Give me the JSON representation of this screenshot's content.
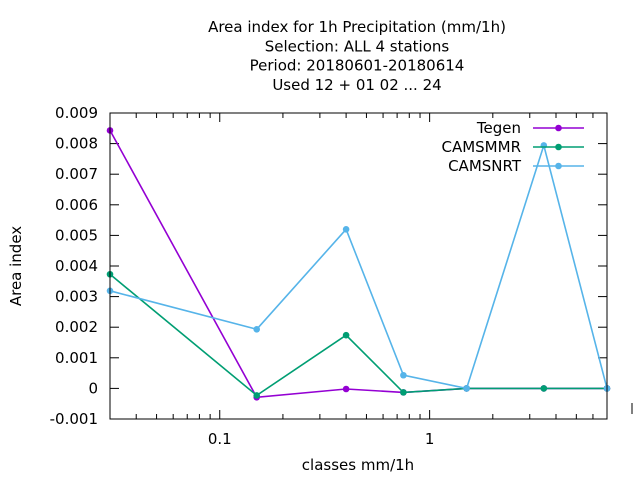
{
  "chart_data": {
    "type": "line",
    "title": [
      "Area index  for 1h Precipitation (mm/1h)",
      "Selection: ALL      4 stations",
      "Period: 20180601-20180614",
      "Used  12 + 01 02 ... 24"
    ],
    "xlabel": "classes mm/1h",
    "ylabel": "Area index",
    "xscale": "log",
    "xlim": [
      0.03,
      7
    ],
    "ylim": [
      -0.001,
      0.009
    ],
    "xticks": [
      {
        "value": 0.1,
        "label": "0.1"
      },
      {
        "value": 1,
        "label": "1"
      }
    ],
    "yticks": [
      {
        "value": -0.001,
        "label": "-0.001"
      },
      {
        "value": 0,
        "label": "0"
      },
      {
        "value": 0.001,
        "label": "0.001"
      },
      {
        "value": 0.002,
        "label": "0.002"
      },
      {
        "value": 0.003,
        "label": "0.003"
      },
      {
        "value": 0.004,
        "label": "0.004"
      },
      {
        "value": 0.005,
        "label": "0.005"
      },
      {
        "value": 0.006,
        "label": "0.006"
      },
      {
        "value": 0.007,
        "label": "0.007"
      },
      {
        "value": 0.008,
        "label": "0.008"
      },
      {
        "value": 0.009,
        "label": "0.009"
      }
    ],
    "grid": false,
    "legend_position": "top-right",
    "x": [
      0.03,
      0.15,
      0.4,
      0.75,
      1.5,
      3.5,
      7
    ],
    "series": [
      {
        "name": "Tegen",
        "color": "#9400d3",
        "values": [
          0.00843,
          -0.00029,
          -2e-05,
          -0.00013,
          0,
          0,
          0
        ]
      },
      {
        "name": "CAMSMMR",
        "color": "#009e73",
        "values": [
          0.00373,
          -0.00023,
          0.00174,
          -0.00013,
          0,
          0,
          0
        ]
      },
      {
        "name": "CAMSNRT",
        "color": "#56b4e9",
        "values": [
          0.00319,
          0.00193,
          0.0052,
          0.00043,
          0,
          0.00794,
          0
        ]
      }
    ]
  }
}
